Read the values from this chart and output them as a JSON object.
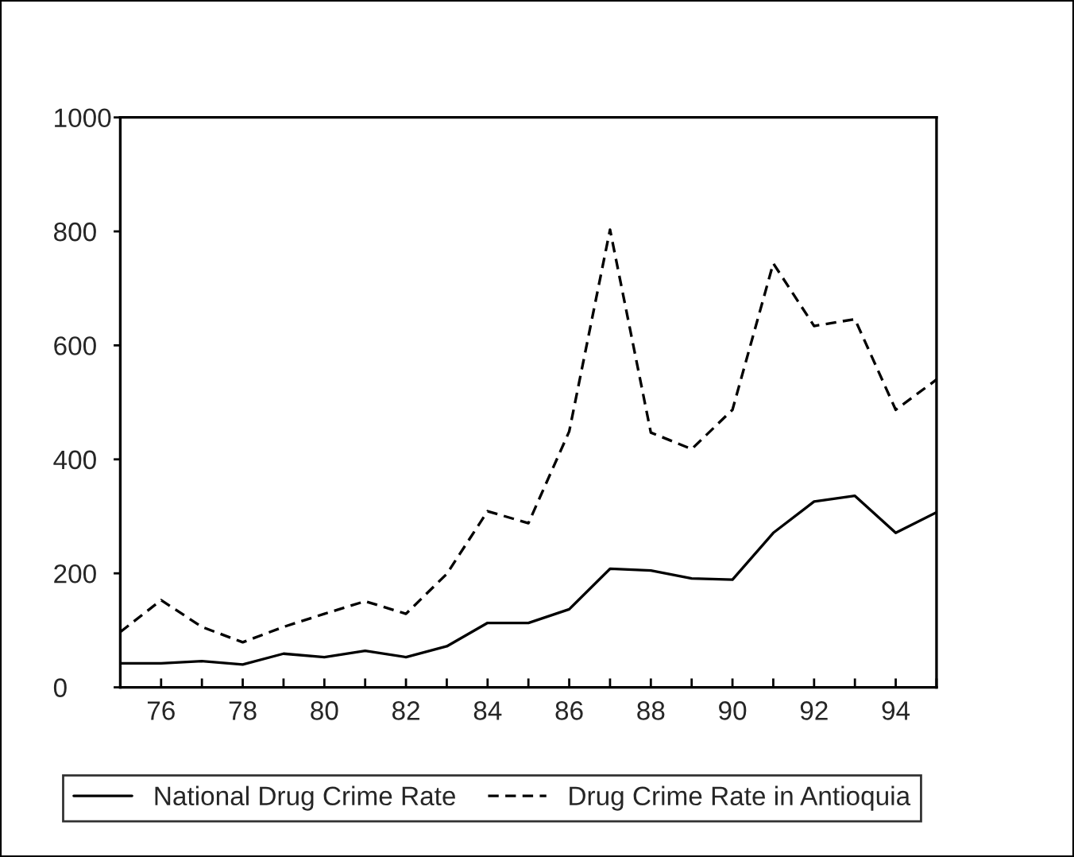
{
  "chart_data": {
    "type": "line",
    "x": [
      75,
      76,
      77,
      78,
      79,
      80,
      81,
      82,
      83,
      84,
      85,
      86,
      87,
      88,
      89,
      90,
      91,
      92,
      93,
      94,
      95
    ],
    "series": [
      {
        "name": "National Drug Crime Rate",
        "color": "#000000",
        "line_style": "solid",
        "values": [
          42,
          42,
          46,
          40,
          59,
          53,
          64,
          53,
          72,
          113,
          113,
          137,
          208,
          205,
          191,
          189,
          271,
          326,
          336,
          271,
          307
        ]
      },
      {
        "name": "Drug Crime Rate in Antioquia",
        "color": "#000000",
        "line_style": "dashed",
        "values": [
          97,
          153,
          106,
          79,
          106,
          129,
          151,
          129,
          199,
          309,
          288,
          449,
          803,
          447,
          418,
          487,
          744,
          634,
          646,
          487,
          540
        ]
      }
    ],
    "xlim": [
      75,
      95
    ],
    "xticks": [
      {
        "value": 75,
        "label": null
      },
      76,
      {
        "value": 77,
        "label": null
      },
      78,
      {
        "value": 79,
        "label": null
      },
      80,
      {
        "value": 81,
        "label": null
      },
      82,
      {
        "value": 83,
        "label": null
      },
      84,
      {
        "value": 85,
        "label": null
      },
      86,
      {
        "value": 87,
        "label": null
      },
      88,
      {
        "value": 89,
        "label": null
      },
      90,
      {
        "value": 91,
        "label": null
      },
      92,
      {
        "value": 93,
        "label": null
      },
      94,
      {
        "value": 95,
        "label": null
      }
    ],
    "ylim": [
      0,
      1000
    ],
    "yticks": [
      0,
      200,
      400,
      600,
      800,
      1000
    ],
    "grid": false,
    "legend": "bottom",
    "marker": "none"
  }
}
